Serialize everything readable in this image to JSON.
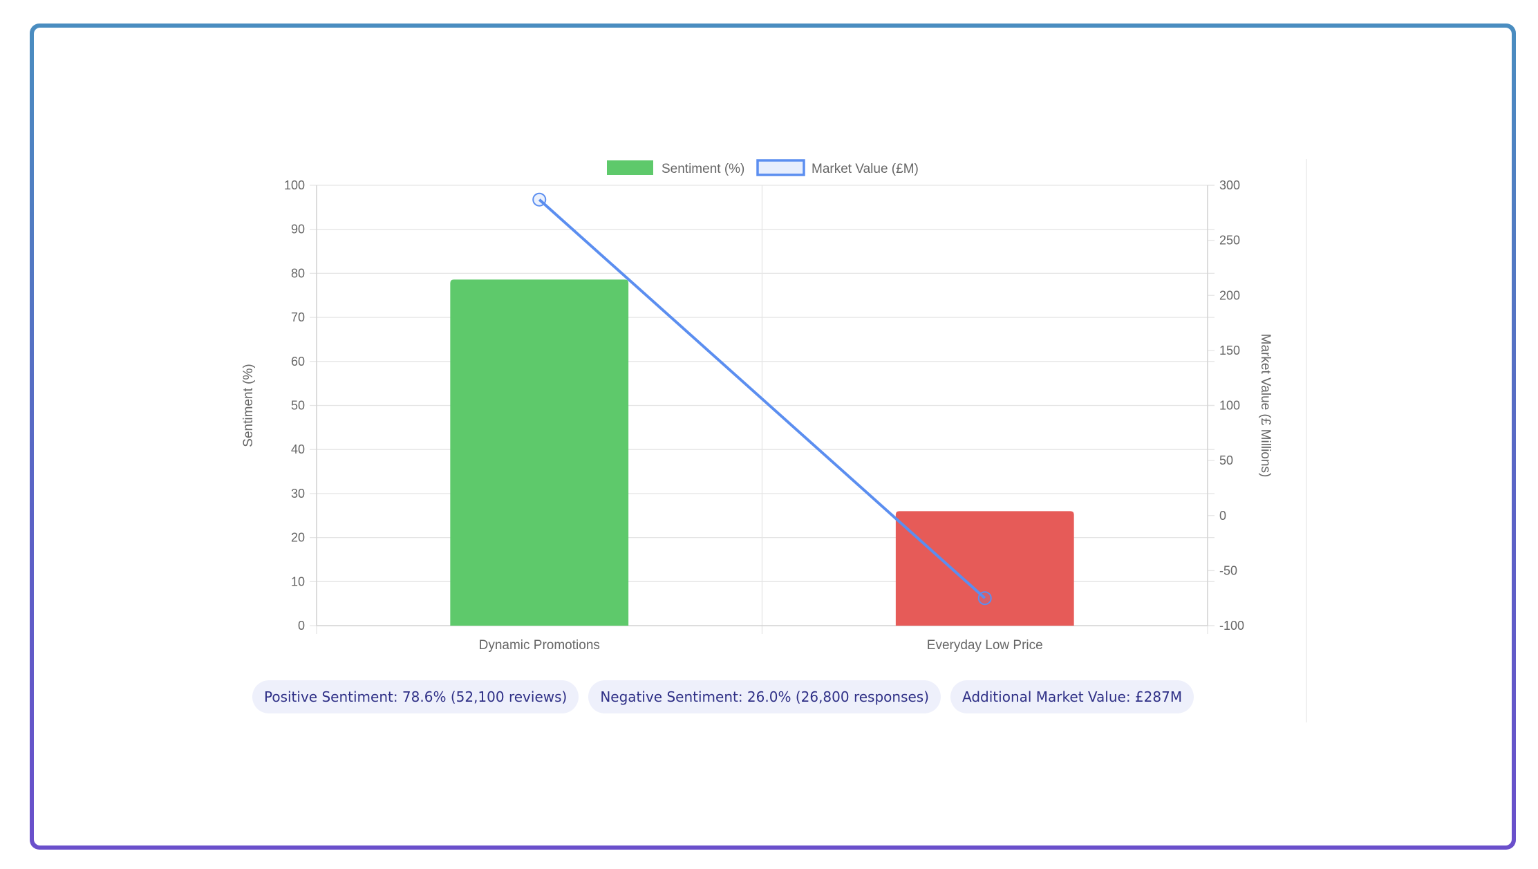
{
  "chart_data": {
    "type": "bar",
    "categories": [
      "Dynamic Promotions",
      "Everyday Low Price"
    ],
    "series": [
      {
        "name": "Sentiment (%)",
        "type": "bar",
        "axis": "left",
        "values": [
          78.6,
          26.0
        ],
        "colors": [
          "#5ec96b",
          "#e65b58"
        ]
      },
      {
        "name": "Market Value (£M)",
        "type": "line",
        "axis": "right",
        "values": [
          287,
          -75
        ],
        "color": "#5b8ef0"
      }
    ],
    "yaxis_left": {
      "label": "Sentiment (%)",
      "ylim": [
        0,
        100
      ],
      "ticks": [
        0,
        10,
        20,
        30,
        40,
        50,
        60,
        70,
        80,
        90,
        100
      ]
    },
    "yaxis_right": {
      "label": "Market Value (£ Millions)",
      "ylim": [
        -100,
        300
      ],
      "ticks": [
        -100,
        -50,
        0,
        50,
        100,
        150,
        200,
        250,
        300
      ]
    },
    "grid": true,
    "legend_position": "top-center"
  },
  "stats": [
    "Positive Sentiment: 78.6% (52,100 reviews)",
    "Negative Sentiment: 26.0% (26,800 responses)",
    "Additional Market Value: £287M"
  ]
}
